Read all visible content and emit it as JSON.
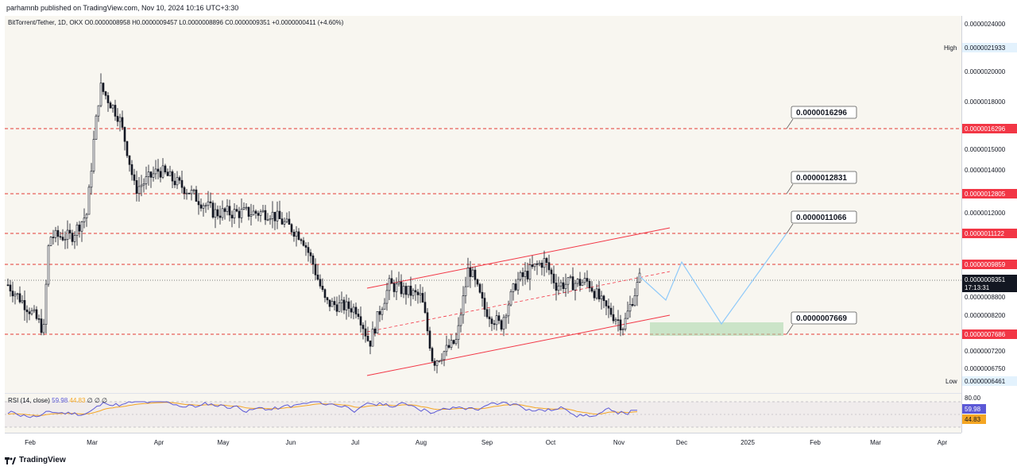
{
  "header": {
    "published": "parhamnb published on TradingView.com, Nov 10, 2024 10:16 UTC+3:30"
  },
  "legend": {
    "symbol": "BitTorrent/Tether, 1D, OKX",
    "ohlc": "O0.0000008958 H0.0000009457 L0.0000008896 C0.0000009351 +0.0000000411 (+4.60%)"
  },
  "rsi_legend": {
    "label": "RSI (14, close)",
    "rsi_value": "59.98",
    "ma_value": "44.83",
    "extras": "∅ ∅ ∅"
  },
  "footer": {
    "brand": "TradingView"
  },
  "colors": {
    "up": "#131722",
    "down": "#131722",
    "resistance": "#e53935",
    "channel": "#f23645",
    "projection": "#90caf9",
    "target_zone": "#a5d6a7",
    "rsi_line": "#5b58d6",
    "rsi_ma": "#f5a623",
    "current": "#131722"
  },
  "chart_data": {
    "type": "candlestick",
    "symbol": "BitTorrent/Tether",
    "timeframe": "1D",
    "exchange": "OKX",
    "x_labels": [
      "Feb",
      "Mar",
      "Apr",
      "May",
      "Jun",
      "Jul",
      "Aug",
      "Sep",
      "Oct",
      "Nov",
      "Dec",
      "2025",
      "Feb",
      "Mar",
      "Apr"
    ],
    "y_tick_labels": [
      "0.0000024000",
      "0.0000021933",
      "0.0000020000",
      "0.0000018000",
      "0.0000016296",
      "0.0000015000",
      "0.0000014000",
      "0.0000012805",
      "0.0000012000",
      "0.0000011122",
      "0.0000009859",
      "0.0000009351",
      "0.0000008800",
      "0.0000008200",
      "0.0000007686",
      "0.0000007200",
      "0.0000006750",
      "0.0000006461"
    ],
    "axis_ticks": [
      {
        "label": "0.0000024000",
        "value": 2.4e-06
      },
      {
        "label": "0.0000020000",
        "value": 2e-06
      },
      {
        "label": "0.0000018000",
        "value": 1.8e-06
      },
      {
        "label": "0.0000015000",
        "value": 1.5e-06
      },
      {
        "label": "0.0000014000",
        "value": 1.4e-06
      },
      {
        "label": "0.0000012000",
        "value": 1.2e-06
      },
      {
        "label": "0.0000008800",
        "value": 8.8e-07
      },
      {
        "label": "0.0000008200",
        "value": 8.2e-07
      },
      {
        "label": "0.0000007200",
        "value": 7.2e-07
      },
      {
        "label": "0.0000006750",
        "value": 6.75e-07
      }
    ],
    "high_label": "High",
    "high_value": "0.0000021933",
    "low_label": "Low",
    "low_value": "0.0000006461",
    "current_price": "0.0000009351",
    "countdown": "17:13:31",
    "resistance_levels": [
      {
        "label": "0.0000016296",
        "value": 1.6296e-06
      },
      {
        "label": "0.0000012805",
        "value": 1.2805e-06
      },
      {
        "label": "0.0000011122",
        "value": 1.1122e-06
      },
      {
        "label": "0.0000009859",
        "value": 9.859e-07
      },
      {
        "label": "0.0000007686",
        "value": 7.686e-07
      }
    ],
    "callouts": [
      {
        "label": "0.0000016296",
        "value": 1.6296e-06
      },
      {
        "label": "0.0000012831",
        "value": 1.2831e-06
      },
      {
        "label": "0.0000011066",
        "value": 1.1066e-06
      },
      {
        "label": "0.0000007669",
        "value": 7.669e-07
      }
    ],
    "rsi": {
      "period": 14,
      "value": 59.98,
      "ma": 44.83,
      "upper_band": 80,
      "upper_label": "80.00",
      "lower_band": 20
    }
  }
}
